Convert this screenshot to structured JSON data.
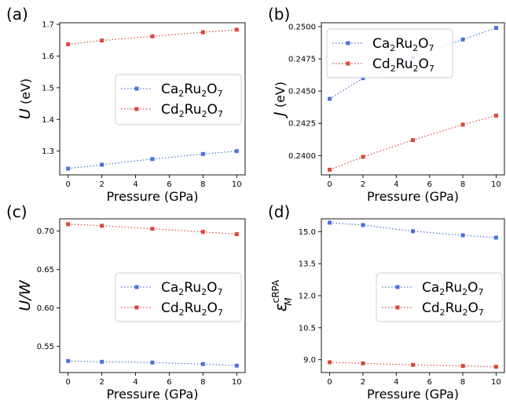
{
  "chart_data": [
    {
      "type": "line",
      "panel_label": "(a)",
      "xlabel": "Pressure (GPa)",
      "ylabel_main": "U",
      "ylabel_unit": " (eV)",
      "xlim": [
        -0.5,
        10.5
      ],
      "ylim": [
        1.225,
        1.705
      ],
      "xticks": [
        0,
        2,
        4,
        6,
        8,
        10
      ],
      "yticks": [
        1.3,
        1.4,
        1.5,
        1.6,
        1.7
      ],
      "ytick_labels": [
        "1.3",
        "1.4",
        "1.5",
        "1.6",
        "1.7"
      ],
      "legend_placement": "center-right",
      "series": [
        {
          "name": "Ca2Ru2O7",
          "name_main": "Ca",
          "name_sub1": "2",
          "name_mid": "Ru",
          "name_sub2": "2",
          "name_end": "O",
          "name_sub3": "7",
          "color": "#4c72d9",
          "x": [
            0,
            2,
            5,
            8,
            10
          ],
          "values": [
            1.245,
            1.257,
            1.275,
            1.291,
            1.3
          ]
        },
        {
          "name": "Cd2Ru2O7",
          "name_main": "Cd",
          "name_sub1": "2",
          "name_mid": "Ru",
          "name_sub2": "2",
          "name_end": "O",
          "name_sub3": "7",
          "color": "#d94a3b",
          "x": [
            0,
            2,
            5,
            8,
            10
          ],
          "values": [
            1.637,
            1.649,
            1.662,
            1.675,
            1.683
          ]
        }
      ]
    },
    {
      "type": "line",
      "panel_label": "(b)",
      "xlabel": "Pressure (GPa)",
      "ylabel_main": "J",
      "ylabel_unit": " (eV)",
      "xlim": [
        -0.5,
        10.5
      ],
      "ylim": [
        0.2385,
        0.2503
      ],
      "xticks": [
        0,
        2,
        4,
        6,
        8,
        10
      ],
      "yticks": [
        0.24,
        0.2425,
        0.245,
        0.2475,
        0.25
      ],
      "ytick_labels": [
        "0.2400",
        "0.2425",
        "0.2450",
        "0.2475",
        "0.2500"
      ],
      "legend_placement": "top-right",
      "series": [
        {
          "name": "Ca2Ru2O7",
          "name_main": "Ca",
          "name_sub1": "2",
          "name_mid": "Ru",
          "name_sub2": "2",
          "name_end": "O",
          "name_sub3": "7",
          "color": "#4c72d9",
          "x": [
            0,
            2,
            5,
            8,
            10
          ],
          "values": [
            0.2444,
            0.246,
            0.2476,
            0.249,
            0.2499
          ]
        },
        {
          "name": "Cd2Ru2O7",
          "name_main": "Cd",
          "name_sub1": "2",
          "name_mid": "Ru",
          "name_sub2": "2",
          "name_end": "O",
          "name_sub3": "7",
          "color": "#d94a3b",
          "x": [
            0,
            2,
            5,
            8,
            10
          ],
          "values": [
            0.2389,
            0.2399,
            0.2412,
            0.2424,
            0.2431
          ]
        }
      ]
    },
    {
      "type": "line",
      "panel_label": "(c)",
      "xlabel": "Pressure (GPa)",
      "ylabel_main": "U/W",
      "ylabel_unit": "",
      "xlim": [
        -0.5,
        10.5
      ],
      "ylim": [
        0.516,
        0.716
      ],
      "xticks": [
        0,
        2,
        4,
        6,
        8,
        10
      ],
      "yticks": [
        0.55,
        0.6,
        0.65,
        0.7
      ],
      "ytick_labels": [
        "0.55",
        "0.60",
        "0.65",
        "0.70"
      ],
      "legend_placement": "center-right",
      "series": [
        {
          "name": "Ca2Ru2O7",
          "name_main": "Ca",
          "name_sub1": "2",
          "name_mid": "Ru",
          "name_sub2": "2",
          "name_end": "O",
          "name_sub3": "7",
          "color": "#4c72d9",
          "x": [
            0,
            2,
            5,
            8,
            10
          ],
          "values": [
            0.531,
            0.53,
            0.529,
            0.527,
            0.525
          ]
        },
        {
          "name": "Cd2Ru2O7",
          "name_main": "Cd",
          "name_sub1": "2",
          "name_mid": "Ru",
          "name_sub2": "2",
          "name_end": "O",
          "name_sub3": "7",
          "color": "#d94a3b",
          "x": [
            0,
            2,
            5,
            8,
            10
          ],
          "values": [
            0.709,
            0.707,
            0.703,
            0.699,
            0.696
          ]
        }
      ]
    },
    {
      "type": "line",
      "panel_label": "(d)",
      "xlabel": "Pressure (GPa)",
      "ylabel_main": "ε",
      "ylabel_sup": "cRPA",
      "ylabel_sub": "M",
      "xlim": [
        -0.5,
        10.5
      ],
      "ylim": [
        8.4,
        15.6
      ],
      "xticks": [
        0,
        2,
        4,
        6,
        8,
        10
      ],
      "yticks": [
        9.0,
        10.5,
        12.0,
        13.5,
        15.0
      ],
      "ytick_labels": [
        "9.0",
        "10.5",
        "12.0",
        "13.5",
        "15.0"
      ],
      "legend_placement": "center-right",
      "series": [
        {
          "name": "Ca2Ru2O7",
          "name_main": "Ca",
          "name_sub1": "2",
          "name_mid": "Ru",
          "name_sub2": "2",
          "name_end": "O",
          "name_sub3": "7",
          "color": "#4c72d9",
          "x": [
            0,
            2,
            5,
            8,
            10
          ],
          "values": [
            15.42,
            15.31,
            15.02,
            14.83,
            14.72
          ]
        },
        {
          "name": "Cd2Ru2O7",
          "name_main": "Cd",
          "name_sub1": "2",
          "name_mid": "Ru",
          "name_sub2": "2",
          "name_end": "O",
          "name_sub3": "7",
          "color": "#d94a3b",
          "x": [
            0,
            2,
            5,
            8,
            10
          ],
          "values": [
            8.88,
            8.83,
            8.76,
            8.71,
            8.67
          ]
        }
      ]
    }
  ]
}
